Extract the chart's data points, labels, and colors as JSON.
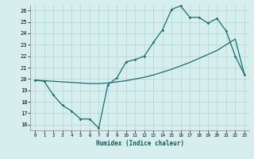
{
  "xlabel": "Humidex (Indice chaleur)",
  "xlim": [
    -0.5,
    23.5
  ],
  "ylim": [
    15.5,
    26.5
  ],
  "yticks": [
    16,
    17,
    18,
    19,
    20,
    21,
    22,
    23,
    24,
    25,
    26
  ],
  "xticks": [
    0,
    1,
    2,
    3,
    4,
    5,
    6,
    7,
    8,
    9,
    10,
    11,
    12,
    13,
    14,
    15,
    16,
    17,
    18,
    19,
    20,
    21,
    22,
    23
  ],
  "bg_color": "#d6eeee",
  "grid_color": "#b8d8d8",
  "line_color": "#1a6e6e",
  "line1_x": [
    0,
    1,
    2,
    3,
    4,
    5,
    6,
    7,
    8,
    9,
    10,
    11,
    12,
    13,
    14,
    15,
    16,
    17,
    18,
    19,
    20,
    21,
    22,
    23
  ],
  "line1_y": [
    19.9,
    19.8,
    18.6,
    17.7,
    17.2,
    16.5,
    16.5,
    15.7,
    19.5,
    20.1,
    21.5,
    21.7,
    22.0,
    23.2,
    24.3,
    26.1,
    26.4,
    25.4,
    25.4,
    24.9,
    25.3,
    24.2,
    22.0,
    20.4
  ],
  "line2_x": [
    0,
    1,
    2,
    3,
    4,
    5,
    6,
    7,
    8,
    9,
    10,
    11,
    12,
    13,
    14,
    15,
    16,
    17,
    18,
    19,
    20,
    21,
    22,
    23
  ],
  "line2_y": [
    19.9,
    19.85,
    19.8,
    19.75,
    19.7,
    19.65,
    19.6,
    19.6,
    19.65,
    19.75,
    19.85,
    20.0,
    20.15,
    20.35,
    20.6,
    20.85,
    21.15,
    21.45,
    21.8,
    22.15,
    22.5,
    23.0,
    23.5,
    20.4
  ]
}
